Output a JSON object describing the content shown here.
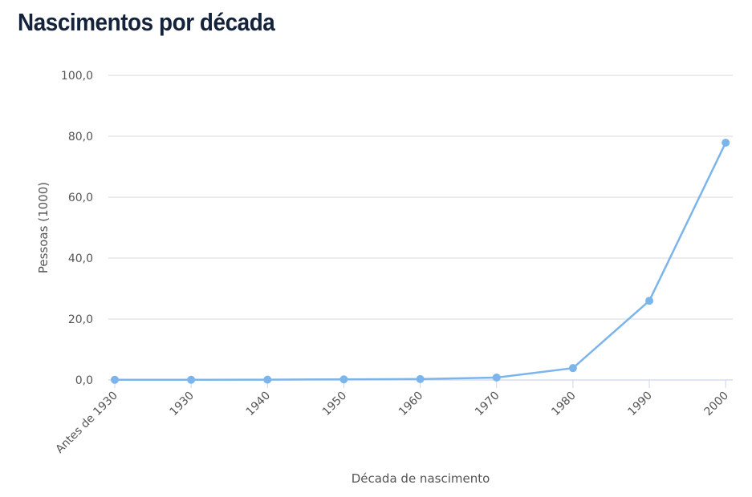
{
  "title": "Nascimentos por década",
  "chart_data": {
    "type": "line",
    "title": "Nascimentos por década",
    "xlabel": "Década de nascimento",
    "ylabel": "Pessoas (1000)",
    "categories": [
      "Antes de 1930",
      "1930",
      "1940",
      "1950",
      "1960",
      "1970",
      "1980",
      "1990",
      "2000"
    ],
    "values": [
      0.05,
      0.05,
      0.1,
      0.2,
      0.3,
      0.8,
      3.9,
      26.0,
      77.9
    ],
    "ylim": [
      0,
      100
    ],
    "yticks": [
      "0,0",
      "20,0",
      "40,0",
      "60,0",
      "80,0",
      "100,0"
    ],
    "grid": true,
    "color": "#7cb5ec"
  }
}
